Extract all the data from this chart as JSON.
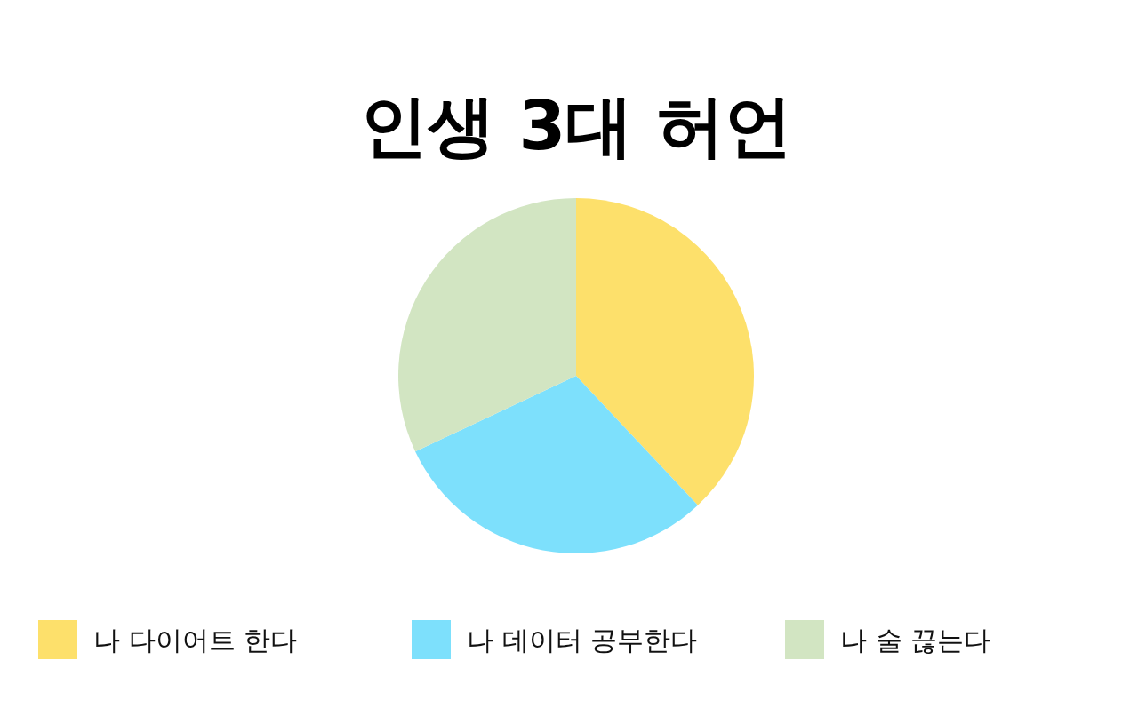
{
  "chart_data": {
    "type": "pie",
    "title": "인생 3대 허언",
    "categories": [
      "나 다이어트 한다",
      "나 데이터 공부한다",
      "나 술 끊는다"
    ],
    "values": [
      38,
      30,
      32
    ],
    "colors": [
      "#fde06b",
      "#7de0fc",
      "#d2e5c2"
    ],
    "legend": "bottom"
  }
}
